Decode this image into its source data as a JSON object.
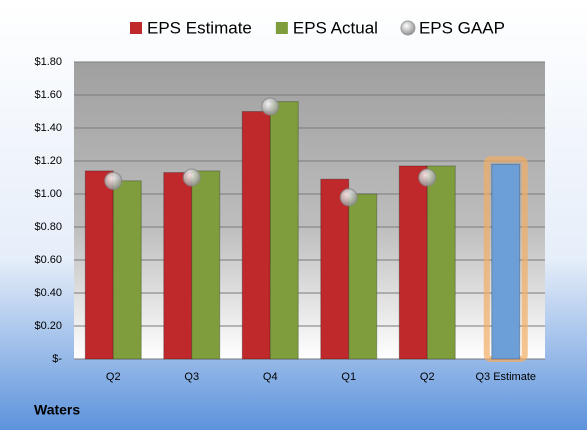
{
  "chart_data": {
    "type": "bar",
    "title": "Waters",
    "categories": [
      "Q2",
      "Q3",
      "Q4",
      "Q1",
      "Q2",
      "Q3 Estimate"
    ],
    "series": [
      {
        "name": "EPS Estimate",
        "color": "#c0292b",
        "colors": [
          "#c0292b",
          "#c0292b",
          "#c0292b",
          "#c0292b",
          "#c0292b",
          "#6c9ed8"
        ],
        "values": [
          1.14,
          1.13,
          1.5,
          1.09,
          1.17,
          1.18
        ]
      },
      {
        "name": "EPS Actual",
        "color": "#7f9d3c",
        "values": [
          1.08,
          1.14,
          1.56,
          1.0,
          1.17,
          null
        ]
      },
      {
        "name": "EPS GAAP",
        "color": "#b8b8b8",
        "marker": "circle",
        "values": [
          1.08,
          1.1,
          1.53,
          0.98,
          1.1,
          null
        ]
      }
    ],
    "ylim": [
      0,
      1.8
    ],
    "yticks": [
      {
        "value": 0,
        "label": "$-"
      },
      {
        "value": 0.2,
        "label": "$0.20"
      },
      {
        "value": 0.4,
        "label": "$0.40"
      },
      {
        "value": 0.6,
        "label": "$0.60"
      },
      {
        "value": 0.8,
        "label": "$0.80"
      },
      {
        "value": 1.0,
        "label": "$1.00"
      },
      {
        "value": 1.2,
        "label": "$1.20"
      },
      {
        "value": 1.4,
        "label": "$1.40"
      },
      {
        "value": 1.6,
        "label": "$1.60"
      },
      {
        "value": 1.8,
        "label": "$1.80"
      }
    ],
    "grid": true,
    "legend": "top"
  }
}
